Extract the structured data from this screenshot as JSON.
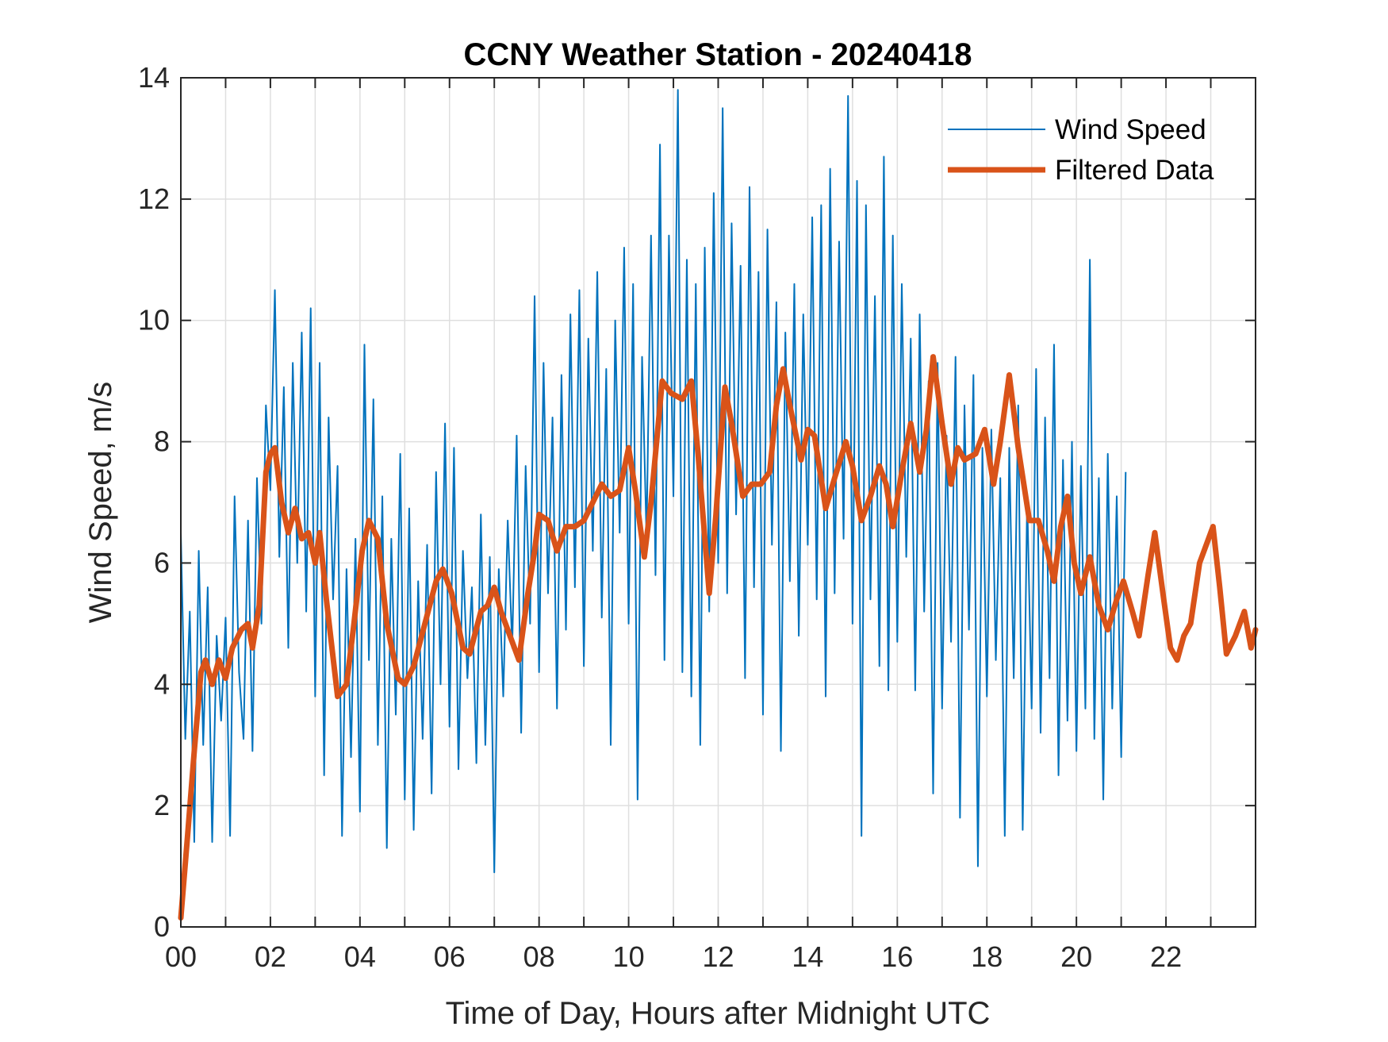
{
  "chart_data": {
    "type": "line",
    "title": "CCNY Weather Station - 20240418",
    "xlabel": "Time of Day, Hours after Midnight UTC",
    "ylabel": "Wind Speed, m/s",
    "xlim": [
      0,
      24
    ],
    "ylim": [
      0,
      14
    ],
    "grid": true,
    "legend_position": "top-right",
    "x_ticks": [
      0,
      2,
      4,
      6,
      8,
      10,
      12,
      14,
      16,
      18,
      20,
      22
    ],
    "x_tick_labels": [
      "00",
      "02",
      "04",
      "06",
      "08",
      "10",
      "12",
      "14",
      "16",
      "18",
      "20",
      "22"
    ],
    "y_ticks": [
      0,
      2,
      4,
      6,
      8,
      10,
      12,
      14
    ],
    "y_tick_labels": [
      "0",
      "2",
      "4",
      "6",
      "8",
      "10",
      "12",
      "14"
    ],
    "series": [
      {
        "name": "Wind Speed",
        "color": "#0072BD",
        "x_step_hours": 0.1,
        "values": [
          6.5,
          3.1,
          5.2,
          1.4,
          6.2,
          3.0,
          5.6,
          1.4,
          4.8,
          3.4,
          5.1,
          1.5,
          7.1,
          4.2,
          3.1,
          6.7,
          2.9,
          7.4,
          5.0,
          8.6,
          7.2,
          10.5,
          6.1,
          8.9,
          4.6,
          9.3,
          6.0,
          9.8,
          5.2,
          10.2,
          3.8,
          9.3,
          2.5,
          8.4,
          5.4,
          7.6,
          1.5,
          5.9,
          2.8,
          6.4,
          1.9,
          9.6,
          4.4,
          8.7,
          3.0,
          7.1,
          1.3,
          6.4,
          3.5,
          7.8,
          2.1,
          6.9,
          1.6,
          5.7,
          3.1,
          6.3,
          2.2,
          7.5,
          4.0,
          8.3,
          3.3,
          7.9,
          2.6,
          6.2,
          4.1,
          5.6,
          2.7,
          6.8,
          3.0,
          6.1,
          0.9,
          5.9,
          3.8,
          6.7,
          4.6,
          8.1,
          3.2,
          7.6,
          5.0,
          10.4,
          4.2,
          9.3,
          5.5,
          8.4,
          3.6,
          9.1,
          4.9,
          10.1,
          5.6,
          10.5,
          4.3,
          9.7,
          6.2,
          10.8,
          5.1,
          9.2,
          3.0,
          10.0,
          6.5,
          11.2,
          5.0,
          10.6,
          2.1,
          9.4,
          6.4,
          11.4,
          5.8,
          12.9,
          4.4,
          11.4,
          7.1,
          13.8,
          4.2,
          11.0,
          3.8,
          10.6,
          3.0,
          11.2,
          5.2,
          12.1,
          6.0,
          13.5,
          5.5,
          11.6,
          6.8,
          10.9,
          4.1,
          12.2,
          5.6,
          10.8,
          3.5,
          11.5,
          6.3,
          10.3,
          2.9,
          9.8,
          5.7,
          10.6,
          4.8,
          10.1,
          6.3,
          11.7,
          5.4,
          11.9,
          3.8,
          12.5,
          5.5,
          11.3,
          6.4,
          13.7,
          5.0,
          12.3,
          1.5,
          11.9,
          5.4,
          10.4,
          4.3,
          12.7,
          3.9,
          11.4,
          4.7,
          10.6,
          6.1,
          9.7,
          3.9,
          10.1,
          5.2,
          9.0,
          2.2,
          9.3,
          3.6,
          8.1,
          4.7,
          9.4,
          1.8,
          8.6,
          4.9,
          9.1,
          1.0,
          7.9,
          3.8,
          8.2,
          4.4,
          7.4,
          1.5,
          7.9,
          4.1,
          8.6,
          1.6,
          7.1,
          3.6,
          9.2,
          3.2,
          8.4,
          4.1,
          9.6,
          2.5,
          7.7,
          3.4,
          8.0,
          2.9,
          7.6,
          3.6,
          11.0,
          3.1,
          7.4,
          2.1,
          7.8,
          3.6,
          7.1,
          2.8,
          7.5
        ]
      },
      {
        "name": "Filtered Data",
        "color": "#D95319",
        "points": [
          [
            0.0,
            0.15
          ],
          [
            0.15,
            1.5
          ],
          [
            0.3,
            2.9
          ],
          [
            0.45,
            4.2
          ],
          [
            0.55,
            4.4
          ],
          [
            0.7,
            4.0
          ],
          [
            0.85,
            4.4
          ],
          [
            1.0,
            4.1
          ],
          [
            1.15,
            4.6
          ],
          [
            1.35,
            4.9
          ],
          [
            1.5,
            5.0
          ],
          [
            1.6,
            4.6
          ],
          [
            1.75,
            5.3
          ],
          [
            1.9,
            7.5
          ],
          [
            2.0,
            7.8
          ],
          [
            2.1,
            7.9
          ],
          [
            2.25,
            7.0
          ],
          [
            2.4,
            6.5
          ],
          [
            2.55,
            6.9
          ],
          [
            2.7,
            6.4
          ],
          [
            2.85,
            6.5
          ],
          [
            3.0,
            6.0
          ],
          [
            3.1,
            6.5
          ],
          [
            3.25,
            5.4
          ],
          [
            3.5,
            3.8
          ],
          [
            3.7,
            4.0
          ],
          [
            3.85,
            4.9
          ],
          [
            4.05,
            6.2
          ],
          [
            4.2,
            6.7
          ],
          [
            4.4,
            6.4
          ],
          [
            4.6,
            5.0
          ],
          [
            4.85,
            4.1
          ],
          [
            5.0,
            4.0
          ],
          [
            5.2,
            4.3
          ],
          [
            5.45,
            5.0
          ],
          [
            5.7,
            5.7
          ],
          [
            5.85,
            5.9
          ],
          [
            6.05,
            5.5
          ],
          [
            6.3,
            4.6
          ],
          [
            6.45,
            4.5
          ],
          [
            6.7,
            5.2
          ],
          [
            6.85,
            5.3
          ],
          [
            7.0,
            5.6
          ],
          [
            7.15,
            5.2
          ],
          [
            7.35,
            4.8
          ],
          [
            7.55,
            4.4
          ],
          [
            7.75,
            5.5
          ],
          [
            7.9,
            6.2
          ],
          [
            8.0,
            6.8
          ],
          [
            8.2,
            6.7
          ],
          [
            8.4,
            6.2
          ],
          [
            8.6,
            6.6
          ],
          [
            8.8,
            6.6
          ],
          [
            9.0,
            6.7
          ],
          [
            9.2,
            7.0
          ],
          [
            9.4,
            7.3
          ],
          [
            9.6,
            7.1
          ],
          [
            9.8,
            7.2
          ],
          [
            10.0,
            7.9
          ],
          [
            10.15,
            7.2
          ],
          [
            10.35,
            6.1
          ],
          [
            10.5,
            7.0
          ],
          [
            10.75,
            9.0
          ],
          [
            10.95,
            8.8
          ],
          [
            11.2,
            8.7
          ],
          [
            11.4,
            9.0
          ],
          [
            11.55,
            7.8
          ],
          [
            11.8,
            5.5
          ],
          [
            11.95,
            6.8
          ],
          [
            12.15,
            8.9
          ],
          [
            12.3,
            8.3
          ],
          [
            12.55,
            7.1
          ],
          [
            12.75,
            7.3
          ],
          [
            12.95,
            7.3
          ],
          [
            13.15,
            7.5
          ],
          [
            13.3,
            8.6
          ],
          [
            13.45,
            9.2
          ],
          [
            13.6,
            8.6
          ],
          [
            13.85,
            7.7
          ],
          [
            14.0,
            8.2
          ],
          [
            14.15,
            8.1
          ],
          [
            14.4,
            6.9
          ],
          [
            14.6,
            7.4
          ],
          [
            14.85,
            8.0
          ],
          [
            15.0,
            7.6
          ],
          [
            15.2,
            6.7
          ],
          [
            15.4,
            7.1
          ],
          [
            15.6,
            7.6
          ],
          [
            15.75,
            7.3
          ],
          [
            15.9,
            6.6
          ],
          [
            16.1,
            7.5
          ],
          [
            16.3,
            8.3
          ],
          [
            16.5,
            7.5
          ],
          [
            16.65,
            8.2
          ],
          [
            16.8,
            9.4
          ],
          [
            17.0,
            8.3
          ],
          [
            17.2,
            7.3
          ],
          [
            17.35,
            7.9
          ],
          [
            17.5,
            7.7
          ],
          [
            17.75,
            7.8
          ],
          [
            17.95,
            8.2
          ],
          [
            18.15,
            7.3
          ],
          [
            18.3,
            8.0
          ],
          [
            18.5,
            9.1
          ],
          [
            18.7,
            7.9
          ],
          [
            18.95,
            6.7
          ],
          [
            19.15,
            6.7
          ],
          [
            19.35,
            6.2
          ],
          [
            19.5,
            5.7
          ],
          [
            19.65,
            6.6
          ],
          [
            19.8,
            7.1
          ],
          [
            19.95,
            6.0
          ],
          [
            20.1,
            5.5
          ],
          [
            20.3,
            6.1
          ],
          [
            20.5,
            5.3
          ],
          [
            20.7,
            4.9
          ],
          [
            20.9,
            5.4
          ],
          [
            21.05,
            5.7
          ],
          [
            21.25,
            5.2
          ],
          [
            21.4,
            4.8
          ],
          [
            21.6,
            5.8
          ],
          [
            21.75,
            6.5
          ],
          [
            21.95,
            5.4
          ],
          [
            22.1,
            4.6
          ],
          [
            22.25,
            4.4
          ],
          [
            22.4,
            4.8
          ],
          [
            22.55,
            5.0
          ],
          [
            22.75,
            6.0
          ],
          [
            23.05,
            6.6
          ],
          [
            23.2,
            5.6
          ],
          [
            23.35,
            4.5
          ],
          [
            23.55,
            4.8
          ],
          [
            23.75,
            5.2
          ],
          [
            23.9,
            4.6
          ],
          [
            24.0,
            4.9
          ]
        ]
      }
    ]
  }
}
